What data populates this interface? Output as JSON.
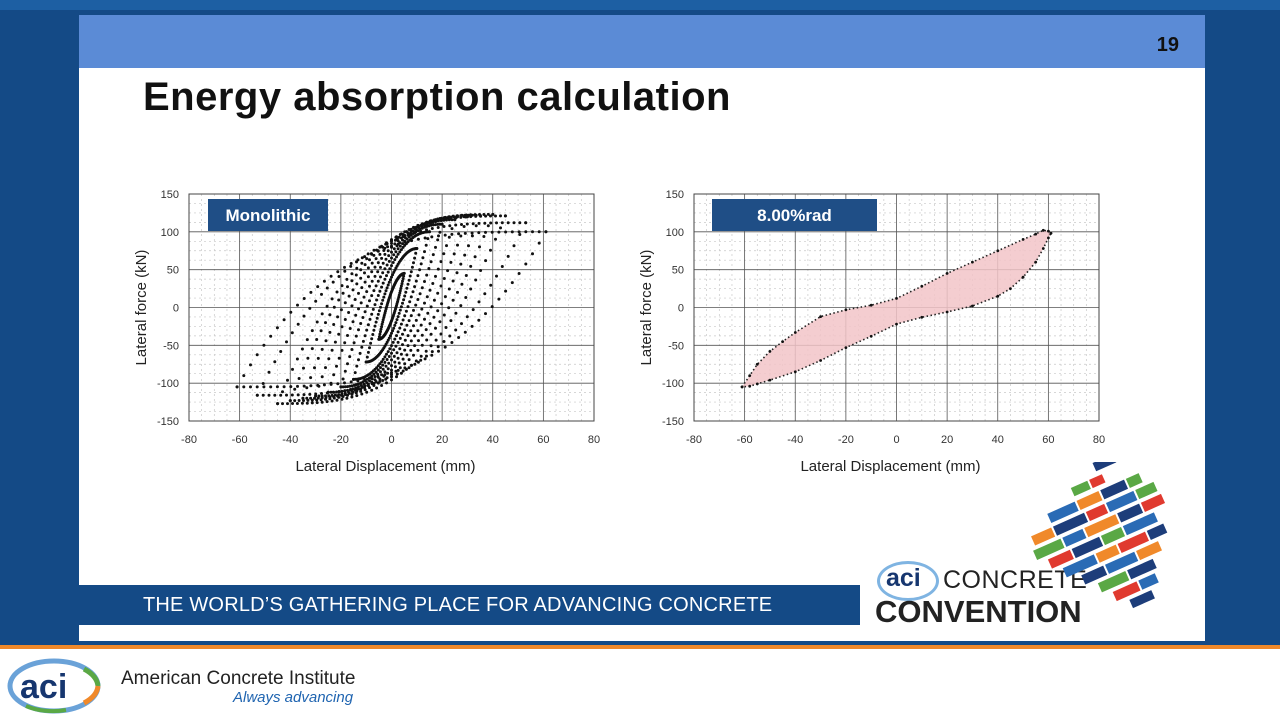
{
  "slide": {
    "number": "19",
    "title": "Energy absorption calculation",
    "tagline": "THE WORLD’S GATHERING PLACE FOR ADVANCING CONCRETE"
  },
  "branding": {
    "convention_badge": "aci",
    "convention_line1": "CONCRETE",
    "convention_line2": "CONVENTION",
    "footer_badge": "aci",
    "footer_org": "American Concrete Institute",
    "footer_motto": "Always advancing"
  },
  "colors": {
    "frame": "#144a86",
    "header": "#5b8bd6",
    "accent_orange": "#f0892a",
    "label_box": "#1f4e86",
    "hysteresis_fill": "#f2c4c8"
  },
  "chart_data": [
    {
      "type": "scatter",
      "label": "Monolithic",
      "xlabel": "Lateral Displacement (mm)",
      "ylabel": "Lateral force (kN)",
      "xlim": [
        -80,
        80
      ],
      "ylim": [
        -150,
        150
      ],
      "xticks": [
        -80,
        -60,
        -40,
        -20,
        0,
        20,
        40,
        60,
        80
      ],
      "yticks": [
        -150,
        -100,
        -50,
        0,
        50,
        100,
        150
      ],
      "grid": true,
      "series": [
        {
          "amp": 5,
          "fpos": 45,
          "fneg": 42
        },
        {
          "amp": 10,
          "fpos": 78,
          "fneg": 72
        },
        {
          "amp": 15,
          "fpos": 100,
          "fneg": 95
        },
        {
          "amp": 20,
          "fpos": 110,
          "fneg": 105
        },
        {
          "amp": 25,
          "fpos": 116,
          "fneg": 112
        },
        {
          "amp": 30,
          "fpos": 120,
          "fneg": 117
        },
        {
          "amp": 35,
          "fpos": 122,
          "fneg": 120
        },
        {
          "amp": 40,
          "fpos": 123,
          "fneg": 123
        },
        {
          "amp": 45,
          "fpos": 121,
          "fneg": 127
        },
        {
          "amp": 53,
          "fpos": 112,
          "fneg": 116
        },
        {
          "amp": 61,
          "fpos": 100,
          "fneg": 105
        }
      ]
    },
    {
      "type": "area",
      "label": "8.00%rad",
      "xlabel": "Lateral Displacement (mm)",
      "ylabel": "Lateral force (kN)",
      "xlim": [
        -80,
        80
      ],
      "ylim": [
        -150,
        150
      ],
      "xticks": [
        -80,
        -60,
        -40,
        -20,
        0,
        20,
        40,
        60,
        80
      ],
      "yticks": [
        -150,
        -100,
        -50,
        0,
        50,
        100,
        150
      ],
      "grid": true,
      "upper": [
        [
          -61,
          -105
        ],
        [
          -58,
          -90
        ],
        [
          -55,
          -75
        ],
        [
          -50,
          -58
        ],
        [
          -45,
          -45
        ],
        [
          -40,
          -33
        ],
        [
          -30,
          -12
        ],
        [
          -20,
          -3
        ],
        [
          -10,
          3
        ],
        [
          0,
          12
        ],
        [
          10,
          28
        ],
        [
          20,
          45
        ],
        [
          30,
          60
        ],
        [
          40,
          75
        ],
        [
          50,
          90
        ],
        [
          55,
          97
        ],
        [
          58,
          102
        ],
        [
          60,
          101
        ],
        [
          61,
          98
        ]
      ],
      "lower": [
        [
          -61,
          -105
        ],
        [
          -58,
          -104
        ],
        [
          -55,
          -101
        ],
        [
          -50,
          -96
        ],
        [
          -40,
          -85
        ],
        [
          -30,
          -70
        ],
        [
          -20,
          -53
        ],
        [
          -10,
          -38
        ],
        [
          0,
          -22
        ],
        [
          10,
          -13
        ],
        [
          20,
          -6
        ],
        [
          30,
          2
        ],
        [
          40,
          15
        ],
        [
          45,
          25
        ],
        [
          50,
          40
        ],
        [
          55,
          60
        ],
        [
          58,
          78
        ],
        [
          60,
          92
        ],
        [
          61,
          98
        ]
      ]
    }
  ]
}
